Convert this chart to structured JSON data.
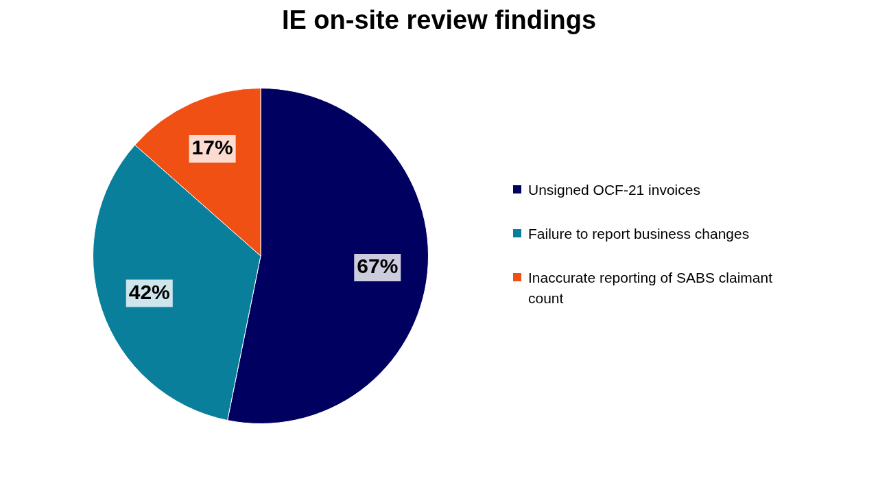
{
  "chart_data": {
    "type": "pie",
    "title": "IE on-site review findings",
    "categories": [
      "Unsigned OCF-21 invoices",
      "Failure to report business changes",
      "Inaccurate reporting of SABS claimant count"
    ],
    "values": [
      67,
      42,
      17
    ],
    "colors": [
      "#000060",
      "#0a7f9c",
      "#f05014"
    ],
    "value_labels": [
      "67%",
      "42%",
      "17%"
    ],
    "legend": "right"
  }
}
